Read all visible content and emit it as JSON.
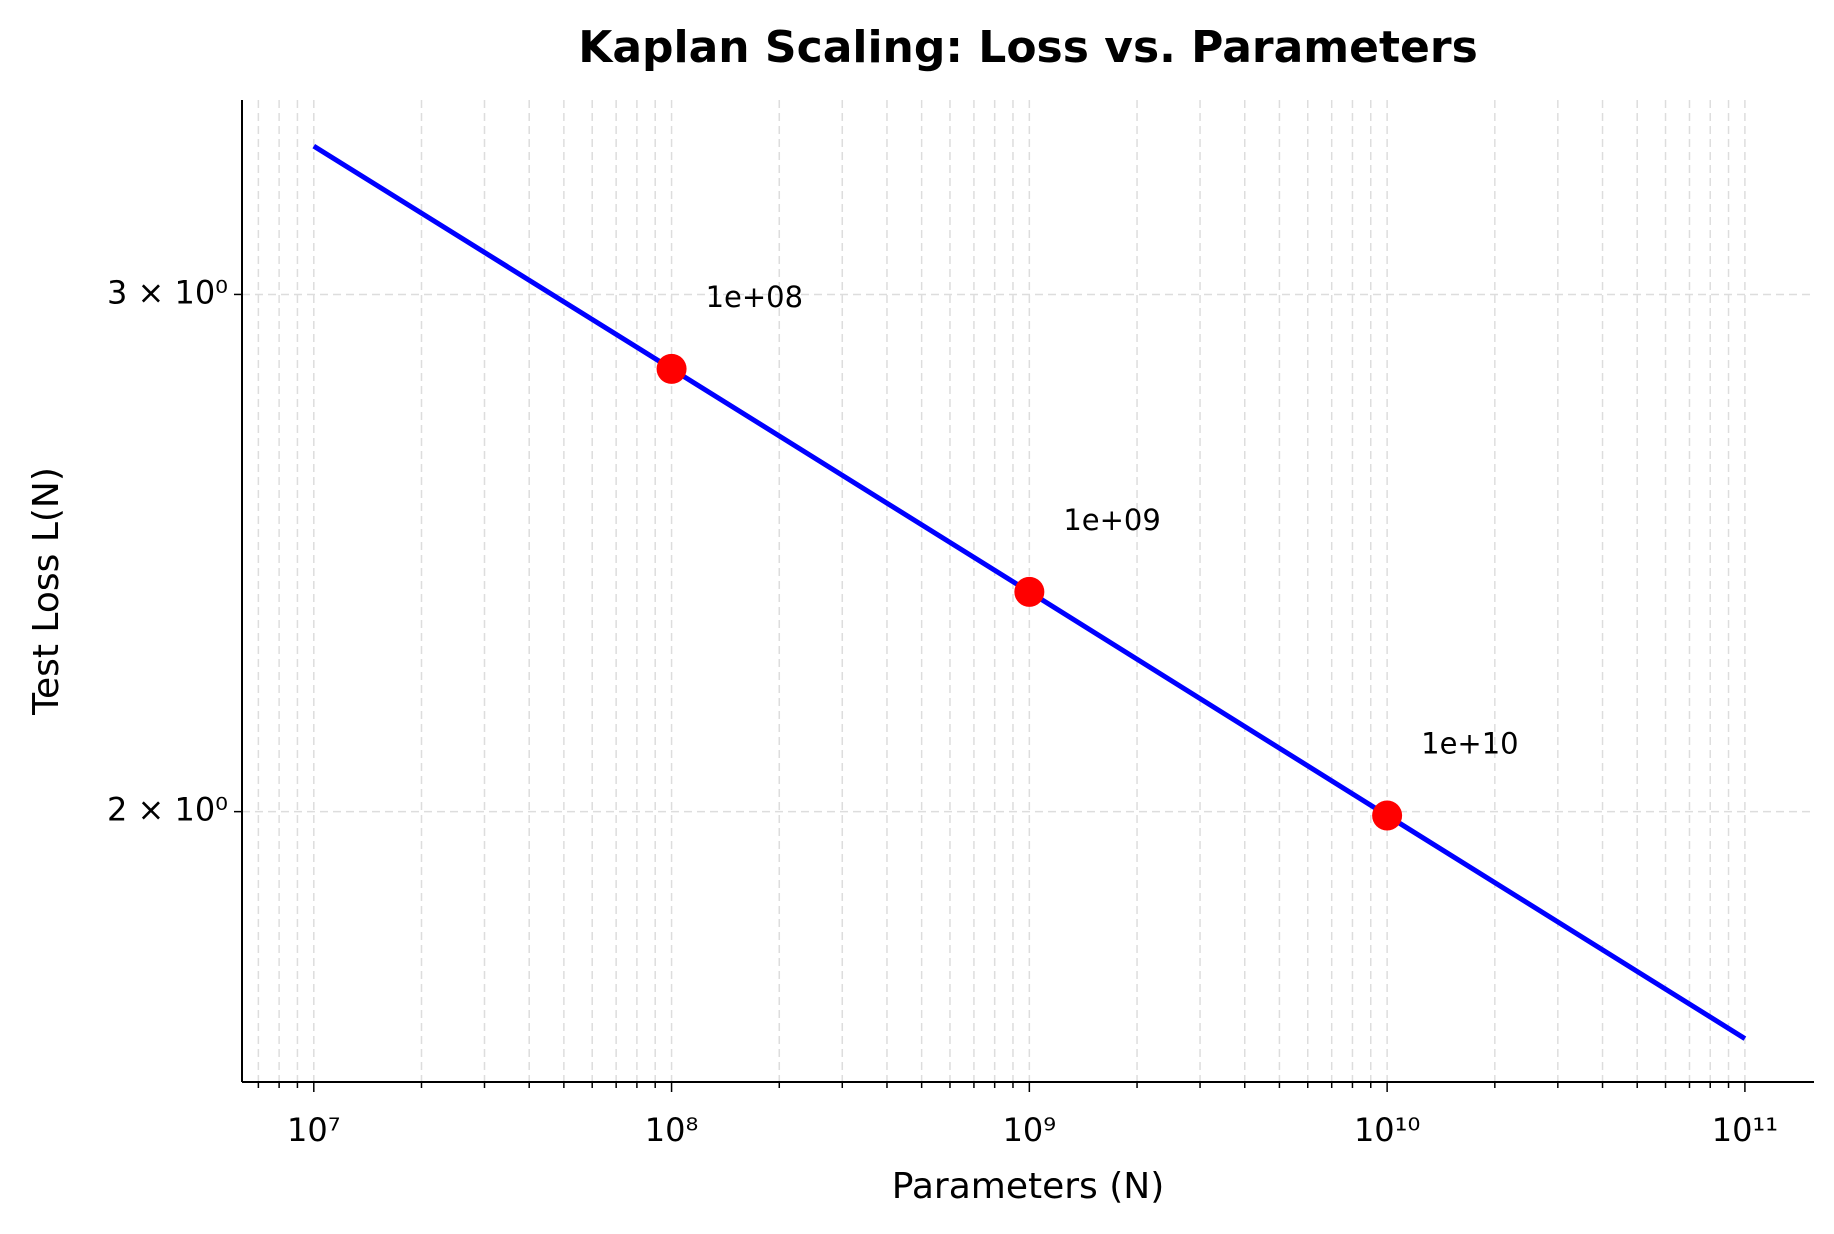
{
  "chart_data": {
    "type": "line",
    "title": "Kaplan Scaling: Loss vs. Parameters",
    "x_label": "Parameters (N)",
    "y_label": "Test Loss L(N)",
    "x_scale": "log",
    "y_scale": "log",
    "grid": true,
    "xlim": [
      6300000,
      156000000000
    ],
    "ylim": [
      1.618,
      3.494
    ],
    "xticks": [
      {
        "value": 10000000,
        "label": "10⁷"
      },
      {
        "value": 100000000,
        "label": "10⁸"
      },
      {
        "value": 1000000000,
        "label": "10⁹"
      },
      {
        "value": 10000000000,
        "label": "10¹⁰"
      },
      {
        "value": 100000000000,
        "label": "10¹¹"
      }
    ],
    "xminorticks": [
      7000000,
      8000000,
      9000000,
      20000000,
      30000000,
      40000000,
      50000000,
      60000000,
      70000000,
      80000000,
      90000000,
      200000000,
      300000000,
      400000000,
      500000000,
      600000000,
      700000000,
      800000000,
      900000000,
      2000000000,
      3000000000,
      4000000000,
      5000000000,
      6000000000,
      7000000000,
      8000000000,
      9000000000,
      20000000000,
      30000000000,
      40000000000,
      50000000000,
      60000000000,
      70000000000,
      80000000000,
      90000000000
    ],
    "yticks": [
      {
        "value": 2,
        "label": "2 × 10⁰"
      },
      {
        "value": 3,
        "label": "3 × 10⁰"
      }
    ],
    "series": [
      {
        "color": "#0000ff",
        "x": [
          10000000,
          100000000,
          1000000000,
          10000000000,
          100000000000
        ],
        "values": [
          3.37,
          2.83,
          2.376,
          1.994,
          1.674
        ]
      }
    ],
    "points": {
      "color": "#ff0000",
      "x": [
        100000000,
        1000000000,
        10000000000
      ],
      "values": [
        2.83,
        2.376,
        1.994
      ],
      "x_labels": [
        "1e+08",
        "1e+09",
        "1e+10"
      ]
    }
  }
}
